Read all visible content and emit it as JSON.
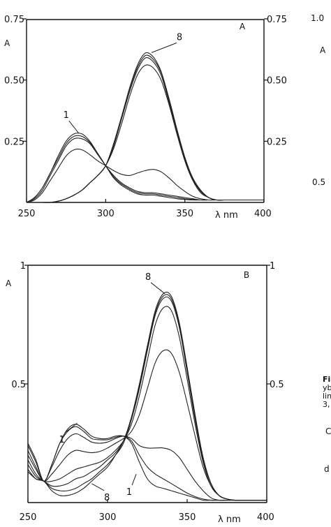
{
  "chart_data": [
    {
      "type": "line",
      "panel_label": "A",
      "xlabel": "λ nm",
      "ylabel": "A",
      "xlim": [
        250,
        400
      ],
      "ylim": [
        0,
        0.75
      ],
      "x_ticks": [
        250,
        300,
        350,
        400
      ],
      "x_tick_labels": [
        "250",
        "300",
        "350",
        "400"
      ],
      "y_ticks": [
        0.25,
        0.5,
        0.75
      ],
      "y_tick_labels_left": [
        "0.25",
        "0.50",
        "0.75"
      ],
      "y_tick_labels_right": [
        "0.25",
        "0.50",
        "0.75"
      ],
      "x": [
        250,
        255,
        260,
        265,
        270,
        275,
        280,
        285,
        290,
        295,
        300,
        305,
        310,
        315,
        320,
        325,
        330,
        335,
        340,
        345,
        350,
        355,
        360,
        365,
        370,
        375,
        380,
        385,
        390,
        395,
        400
      ],
      "series": [
        {
          "name": "1",
          "values": [
            0,
            0.02,
            0.06,
            0.12,
            0.19,
            0.25,
            0.28,
            0.28,
            0.25,
            0.2,
            0.15,
            0.1,
            0.07,
            0.05,
            0.035,
            0.03,
            0.03,
            0.025,
            0.02,
            0.015,
            0.012,
            0.01,
            0.01,
            0.01,
            0.01,
            0.01,
            0.01,
            0.01,
            0.01,
            0.01,
            0.01
          ]
        },
        {
          "name": "",
          "values": [
            0,
            0.02,
            0.06,
            0.12,
            0.18,
            0.24,
            0.27,
            0.27,
            0.245,
            0.2,
            0.15,
            0.105,
            0.075,
            0.055,
            0.04,
            0.035,
            0.035,
            0.03,
            0.025,
            0.02,
            0.015,
            0.012,
            0.01,
            0.01,
            0.01,
            0.01,
            0.01,
            0.01,
            0.01,
            0.01,
            0.01
          ]
        },
        {
          "name": "",
          "values": [
            0,
            0.015,
            0.05,
            0.11,
            0.17,
            0.23,
            0.26,
            0.26,
            0.24,
            0.195,
            0.15,
            0.11,
            0.08,
            0.06,
            0.045,
            0.04,
            0.04,
            0.035,
            0.03,
            0.025,
            0.02,
            0.015,
            0.01,
            0.01,
            0.01,
            0.01,
            0.01,
            0.01,
            0.01,
            0.01,
            0.01
          ]
        },
        {
          "name": "",
          "values": [
            0,
            0.01,
            0.04,
            0.09,
            0.14,
            0.19,
            0.215,
            0.215,
            0.195,
            0.17,
            0.15,
            0.13,
            0.115,
            0.11,
            0.12,
            0.13,
            0.135,
            0.125,
            0.1,
            0.07,
            0.045,
            0.025,
            0.015,
            0.01,
            0.01,
            0.01,
            0.01,
            0.01,
            0.01,
            0.01,
            0.01
          ]
        },
        {
          "name": "",
          "values": [
            0,
            0,
            0,
            0,
            0.005,
            0.015,
            0.03,
            0.05,
            0.08,
            0.11,
            0.15,
            0.22,
            0.32,
            0.43,
            0.52,
            0.56,
            0.55,
            0.5,
            0.4,
            0.28,
            0.17,
            0.09,
            0.04,
            0.02,
            0.01,
            0.01,
            0.01,
            0.01,
            0.01,
            0.01,
            0.01
          ]
        },
        {
          "name": "",
          "values": [
            0,
            0,
            0,
            0,
            0.005,
            0.015,
            0.03,
            0.05,
            0.08,
            0.11,
            0.15,
            0.23,
            0.34,
            0.45,
            0.54,
            0.59,
            0.575,
            0.52,
            0.41,
            0.29,
            0.175,
            0.095,
            0.045,
            0.02,
            0.01,
            0.01,
            0.01,
            0.01,
            0.01,
            0.01,
            0.01
          ]
        },
        {
          "name": "",
          "values": [
            0,
            0,
            0,
            0,
            0.005,
            0.015,
            0.03,
            0.05,
            0.08,
            0.11,
            0.15,
            0.235,
            0.345,
            0.46,
            0.55,
            0.6,
            0.585,
            0.53,
            0.42,
            0.295,
            0.18,
            0.1,
            0.05,
            0.02,
            0.01,
            0.01,
            0.01,
            0.01,
            0.01,
            0.01,
            0.01
          ]
        },
        {
          "name": "8",
          "values": [
            0,
            0,
            0,
            0,
            0.005,
            0.015,
            0.03,
            0.05,
            0.08,
            0.11,
            0.15,
            0.24,
            0.35,
            0.465,
            0.56,
            0.61,
            0.595,
            0.535,
            0.425,
            0.3,
            0.185,
            0.1,
            0.05,
            0.02,
            0.01,
            0.01,
            0.01,
            0.01,
            0.01,
            0.01,
            0.01
          ]
        }
      ],
      "annotations": [
        {
          "text": "1",
          "x": 283,
          "y": 0.282
        },
        {
          "text": "8",
          "x": 329,
          "y": 0.612
        }
      ]
    },
    {
      "type": "line",
      "panel_label": "B",
      "xlabel": "λ nm",
      "ylabel": "A",
      "xlim": [
        250,
        400
      ],
      "ylim": [
        0,
        1.0
      ],
      "x_ticks": [
        250,
        300,
        350,
        400
      ],
      "x_tick_labels": [
        "250",
        "300",
        "350",
        "400"
      ],
      "y_ticks": [
        0.5,
        1.0
      ],
      "y_tick_labels_left": [
        "0.5",
        "1"
      ],
      "y_tick_labels_right": [
        "0.5",
        "1"
      ],
      "x": [
        250,
        255,
        260,
        265,
        270,
        275,
        280,
        285,
        290,
        295,
        300,
        305,
        310,
        315,
        320,
        325,
        330,
        335,
        340,
        345,
        350,
        355,
        360,
        365,
        370,
        375,
        380,
        385,
        390,
        395,
        400
      ],
      "series": [
        {
          "name": "1",
          "values": [
            0.25,
            0.18,
            0.09,
            0.16,
            0.25,
            0.31,
            0.33,
            0.31,
            0.28,
            0.27,
            0.27,
            0.28,
            0.28,
            0.25,
            0.17,
            0.1,
            0.07,
            0.06,
            0.05,
            0.04,
            0.03,
            0.02,
            0.01,
            0.01,
            0.01,
            0.01,
            0.01,
            0.01,
            0.01,
            0.01,
            0.01
          ]
        },
        {
          "name": "",
          "values": [
            0.24,
            0.17,
            0.09,
            0.16,
            0.25,
            0.3,
            0.32,
            0.3,
            0.27,
            0.265,
            0.265,
            0.275,
            0.28,
            0.26,
            0.2,
            0.15,
            0.12,
            0.1,
            0.08,
            0.06,
            0.04,
            0.025,
            0.015,
            0.01,
            0.01,
            0.01,
            0.01,
            0.01,
            0.01,
            0.01,
            0.01
          ]
        },
        {
          "name": "",
          "values": [
            0.22,
            0.15,
            0.09,
            0.15,
            0.22,
            0.27,
            0.29,
            0.275,
            0.255,
            0.25,
            0.255,
            0.27,
            0.28,
            0.27,
            0.24,
            0.23,
            0.23,
            0.23,
            0.22,
            0.19,
            0.14,
            0.09,
            0.05,
            0.02,
            0.01,
            0.01,
            0.01,
            0.01,
            0.01,
            0.01,
            0.01
          ]
        },
        {
          "name": "",
          "values": [
            0.2,
            0.14,
            0.09,
            0.12,
            0.16,
            0.2,
            0.22,
            0.215,
            0.21,
            0.215,
            0.23,
            0.25,
            0.27,
            0.3,
            0.37,
            0.48,
            0.59,
            0.64,
            0.63,
            0.55,
            0.42,
            0.28,
            0.15,
            0.07,
            0.03,
            0.015,
            0.01,
            0.01,
            0.01,
            0.01,
            0.01
          ]
        },
        {
          "name": "",
          "values": [
            0.18,
            0.12,
            0.09,
            0.09,
            0.1,
            0.12,
            0.14,
            0.15,
            0.16,
            0.17,
            0.19,
            0.22,
            0.26,
            0.33,
            0.45,
            0.6,
            0.75,
            0.82,
            0.81,
            0.7,
            0.52,
            0.33,
            0.17,
            0.07,
            0.03,
            0.015,
            0.01,
            0.01,
            0.01,
            0.01,
            0.01
          ]
        },
        {
          "name": "",
          "values": [
            0.16,
            0.11,
            0.09,
            0.07,
            0.07,
            0.08,
            0.1,
            0.11,
            0.13,
            0.15,
            0.18,
            0.21,
            0.26,
            0.35,
            0.48,
            0.64,
            0.79,
            0.86,
            0.85,
            0.74,
            0.55,
            0.35,
            0.18,
            0.08,
            0.03,
            0.015,
            0.01,
            0.01,
            0.01,
            0.01,
            0.01
          ]
        },
        {
          "name": "",
          "values": [
            0.14,
            0.1,
            0.09,
            0.06,
            0.05,
            0.05,
            0.06,
            0.08,
            0.1,
            0.13,
            0.16,
            0.2,
            0.25,
            0.35,
            0.49,
            0.65,
            0.8,
            0.87,
            0.86,
            0.75,
            0.56,
            0.36,
            0.19,
            0.08,
            0.03,
            0.015,
            0.01,
            0.01,
            0.01,
            0.01,
            0.01
          ]
        },
        {
          "name": "8",
          "values": [
            0.13,
            0.1,
            0.09,
            0.05,
            0.03,
            0.03,
            0.04,
            0.06,
            0.09,
            0.12,
            0.15,
            0.2,
            0.26,
            0.36,
            0.5,
            0.66,
            0.81,
            0.88,
            0.87,
            0.76,
            0.57,
            0.37,
            0.19,
            0.08,
            0.03,
            0.015,
            0.01,
            0.01,
            0.01,
            0.01,
            0.01
          ]
        }
      ],
      "annotations": [
        {
          "text": "8",
          "x": 336,
          "y": 0.88
        },
        {
          "text": "1",
          "x": 281,
          "y": 0.335
        },
        {
          "text": "8",
          "x": 290,
          "y": 0.08
        },
        {
          "text": "1",
          "x": 318,
          "y": 0.12
        }
      ]
    }
  ],
  "right_margin_fragments": [
    {
      "text": "1.0"
    },
    {
      "text": "A"
    },
    {
      "text": "0.5"
    },
    {
      "text": "Fi"
    },
    {
      "text": "yb"
    },
    {
      "text": "lin"
    },
    {
      "text": "3,"
    },
    {
      "text": "C"
    },
    {
      "text": "d"
    }
  ]
}
